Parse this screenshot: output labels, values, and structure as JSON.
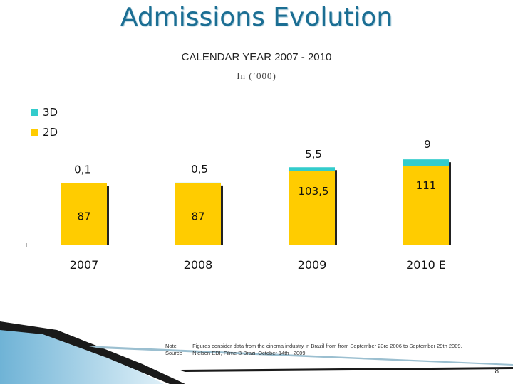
{
  "slide": {
    "title": "Admissions Evolution",
    "page_number": "8",
    "colors": {
      "title": "#1b6e93",
      "bar_2d": "#ffcc00",
      "bar_3d": "#33cccc",
      "shadow": "#222222"
    }
  },
  "notes": [
    {
      "label": "Note",
      "text": "Figures consider data from the cinema industry in Brazil from from September 23rd 2006 to September 29th 2009."
    },
    {
      "label": "Source",
      "text": "Nielsen EDI, Filme B Brazil October 14th , 2009."
    }
  ],
  "chart_data": {
    "type": "bar",
    "stacked": true,
    "title": "CALENDAR YEAR 2007 - 2010",
    "subtitle": "In (‘000)",
    "legend_position": "top-left",
    "categories": [
      "2007",
      "2008",
      "2009",
      "2010 E"
    ],
    "series": [
      {
        "name": "2D",
        "values": [
          87,
          87,
          103.5,
          111
        ],
        "labels": [
          "87",
          "87",
          "103,5",
          "111"
        ],
        "color": "#ffcc00"
      },
      {
        "name": "3D",
        "values": [
          0.1,
          0.5,
          5.5,
          9
        ],
        "labels": [
          "0,1",
          "0,5",
          "5,5",
          "9"
        ],
        "color": "#33cccc"
      }
    ],
    "legend": [
      "3D",
      "2D"
    ],
    "ylim": [
      0,
      120
    ],
    "grid": false,
    "xlabel": "",
    "ylabel": ""
  }
}
